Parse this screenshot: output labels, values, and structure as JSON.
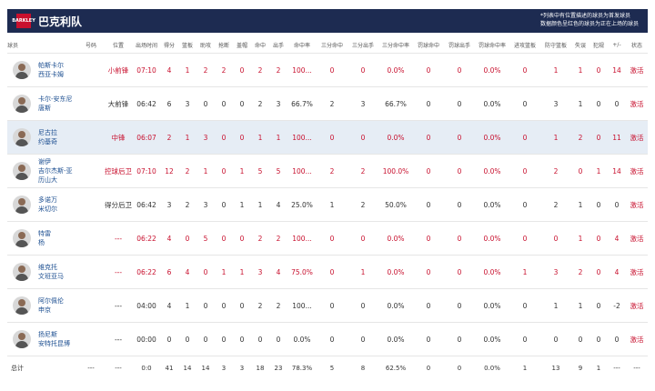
{
  "header": {
    "team_name": "巴克利队",
    "logo_text": "BARKLEY",
    "note1": "*列表中有位置描述的球员为首发球员",
    "note2": "数据颜色呈红色的球员为正在上场的球员"
  },
  "columns": [
    "球员",
    "号码",
    "位置",
    "出场时间",
    "得分",
    "篮板",
    "助攻",
    "抢断",
    "盖帽",
    "命中",
    "出手",
    "命中率",
    "三分命中",
    "三分出手",
    "三分命中率",
    "罚球命中",
    "罚球出手",
    "罚球命中率",
    "进攻篮板",
    "防守篮板",
    "失误",
    "犯规",
    "+/-",
    "状态"
  ],
  "rows": [
    {
      "name1": "帕斯卡尔",
      "name2": "西亚卡姆",
      "num": "",
      "pos": "小前锋",
      "min": "07:10",
      "pts": "4",
      "reb": "1",
      "ast": "2",
      "stl": "2",
      "blk": "0",
      "fgm": "2",
      "fga": "2",
      "fgp": "100...",
      "tpm": "0",
      "tpa": "0",
      "tpp": "0.0%",
      "ftm": "0",
      "fta": "0",
      "ftp": "0.0%",
      "oreb": "0",
      "dreb": "1",
      "tov": "1",
      "pf": "0",
      "pm": "14",
      "status": "激活",
      "on": true,
      "hl": false
    },
    {
      "name1": "卡尔-安东尼",
      "name2": "唐斯",
      "num": "",
      "pos": "大前锋",
      "min": "06:42",
      "pts": "6",
      "reb": "3",
      "ast": "0",
      "stl": "0",
      "blk": "0",
      "fgm": "2",
      "fga": "3",
      "fgp": "66.7%",
      "tpm": "2",
      "tpa": "3",
      "tpp": "66.7%",
      "ftm": "0",
      "fta": "0",
      "ftp": "0.0%",
      "oreb": "0",
      "dreb": "3",
      "tov": "1",
      "pf": "0",
      "pm": "0",
      "status": "激活",
      "on": false,
      "hl": false
    },
    {
      "name1": "尼古拉",
      "name2": "约基奇",
      "num": "",
      "pos": "中锋",
      "min": "06:07",
      "pts": "2",
      "reb": "1",
      "ast": "3",
      "stl": "0",
      "blk": "0",
      "fgm": "1",
      "fga": "1",
      "fgp": "100...",
      "tpm": "0",
      "tpa": "0",
      "tpp": "0.0%",
      "ftm": "0",
      "fta": "0",
      "ftp": "0.0%",
      "oreb": "0",
      "dreb": "1",
      "tov": "2",
      "pf": "0",
      "pm": "11",
      "status": "激活",
      "on": true,
      "hl": true
    },
    {
      "name1": "谢伊",
      "name2": "吉尔杰斯-亚历山大",
      "num": "",
      "pos": "控球后卫",
      "min": "07:10",
      "pts": "12",
      "reb": "2",
      "ast": "1",
      "stl": "0",
      "blk": "1",
      "fgm": "5",
      "fga": "5",
      "fgp": "100...",
      "tpm": "2",
      "tpa": "2",
      "tpp": "100.0%",
      "ftm": "0",
      "fta": "0",
      "ftp": "0.0%",
      "oreb": "0",
      "dreb": "2",
      "tov": "0",
      "pf": "1",
      "pm": "14",
      "status": "激活",
      "on": true,
      "hl": false
    },
    {
      "name1": "多诺万",
      "name2": "米切尔",
      "num": "",
      "pos": "得分后卫",
      "min": "06:42",
      "pts": "3",
      "reb": "2",
      "ast": "3",
      "stl": "0",
      "blk": "1",
      "fgm": "1",
      "fga": "4",
      "fgp": "25.0%",
      "tpm": "1",
      "tpa": "2",
      "tpp": "50.0%",
      "ftm": "0",
      "fta": "0",
      "ftp": "0.0%",
      "oreb": "0",
      "dreb": "2",
      "tov": "1",
      "pf": "0",
      "pm": "0",
      "status": "激活",
      "on": false,
      "hl": false
    },
    {
      "name1": "特雷",
      "name2": "杨",
      "num": "",
      "pos": "---",
      "min": "06:22",
      "pts": "4",
      "reb": "0",
      "ast": "5",
      "stl": "0",
      "blk": "0",
      "fgm": "2",
      "fga": "2",
      "fgp": "100...",
      "tpm": "0",
      "tpa": "0",
      "tpp": "0.0%",
      "ftm": "0",
      "fta": "0",
      "ftp": "0.0%",
      "oreb": "0",
      "dreb": "0",
      "tov": "1",
      "pf": "0",
      "pm": "4",
      "status": "激活",
      "on": true,
      "hl": false
    },
    {
      "name1": "维克托",
      "name2": "文班亚马",
      "num": "",
      "pos": "---",
      "min": "06:22",
      "pts": "6",
      "reb": "4",
      "ast": "0",
      "stl": "1",
      "blk": "1",
      "fgm": "3",
      "fga": "4",
      "fgp": "75.0%",
      "tpm": "0",
      "tpa": "1",
      "tpp": "0.0%",
      "ftm": "0",
      "fta": "0",
      "ftp": "0.0%",
      "oreb": "1",
      "dreb": "3",
      "tov": "2",
      "pf": "0",
      "pm": "4",
      "status": "激活",
      "on": true,
      "hl": false
    },
    {
      "name1": "阿尔佩伦",
      "name2": "申京",
      "num": "",
      "pos": "---",
      "min": "04:00",
      "pts": "4",
      "reb": "1",
      "ast": "0",
      "stl": "0",
      "blk": "0",
      "fgm": "2",
      "fga": "2",
      "fgp": "100...",
      "tpm": "0",
      "tpa": "0",
      "tpp": "0.0%",
      "ftm": "0",
      "fta": "0",
      "ftp": "0.0%",
      "oreb": "0",
      "dreb": "1",
      "tov": "1",
      "pf": "0",
      "pm": "-2",
      "status": "激活",
      "on": false,
      "hl": false
    },
    {
      "name1": "扬尼斯",
      "name2": "安特托昆博",
      "num": "",
      "pos": "---",
      "min": "00:00",
      "pts": "0",
      "reb": "0",
      "ast": "0",
      "stl": "0",
      "blk": "0",
      "fgm": "0",
      "fga": "0",
      "fgp": "0.0%",
      "tpm": "0",
      "tpa": "0",
      "tpp": "0.0%",
      "ftm": "0",
      "fta": "0",
      "ftp": "0.0%",
      "oreb": "0",
      "dreb": "0",
      "tov": "0",
      "pf": "0",
      "pm": "0",
      "status": "激活",
      "on": false,
      "hl": false
    }
  ],
  "total": {
    "label": "总计",
    "num": "---",
    "pos": "---",
    "min": "0:0",
    "pts": "41",
    "reb": "14",
    "ast": "14",
    "stl": "3",
    "blk": "3",
    "fgm": "18",
    "fga": "23",
    "fgp": "78.3%",
    "tpm": "5",
    "tpa": "8",
    "tpp": "62.5%",
    "ftm": "0",
    "fta": "0",
    "ftp": "0.0%",
    "oreb": "1",
    "dreb": "13",
    "tov": "9",
    "pf": "1",
    "pm": "---",
    "status": "---"
  },
  "colors": {
    "header_bg": "#1d2b51",
    "accent_red": "#c8102e",
    "name_blue": "#1d4f91",
    "highlight_row": "#e6edf5"
  }
}
